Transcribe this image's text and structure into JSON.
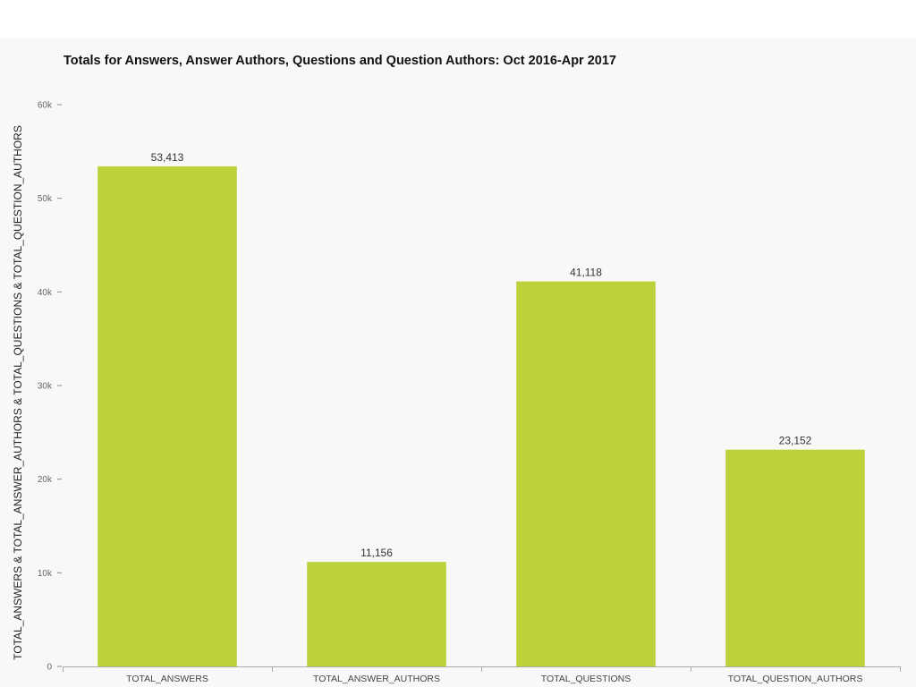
{
  "chart_data": {
    "type": "bar",
    "title": "Totals for Answers, Answer Authors, Questions and Question Authors: Oct 2016-Apr 2017",
    "xlabel": "",
    "ylabel": "TOTAL_ANSWERS & TOTAL_ANSWER_AUTHORS & TOTAL_QUESTIONS & TOTAL_QUESTION_AUTHORS",
    "categories": [
      "TOTAL_ANSWERS",
      "TOTAL_ANSWER_AUTHORS",
      "TOTAL_QUESTIONS",
      "TOTAL_QUESTION_AUTHORS"
    ],
    "values": [
      53413,
      11156,
      41118,
      23152
    ],
    "value_labels": [
      "53,413",
      "11,156",
      "41,118",
      "23,152"
    ],
    "ylim": [
      0,
      60000
    ],
    "yticks": [
      0,
      10000,
      20000,
      30000,
      40000,
      50000,
      60000
    ],
    "ytick_labels": [
      "0",
      "10k",
      "20k",
      "30k",
      "40k",
      "50k",
      "60k"
    ],
    "bar_color": "#bdd13b",
    "grid": false,
    "legend": "none"
  }
}
